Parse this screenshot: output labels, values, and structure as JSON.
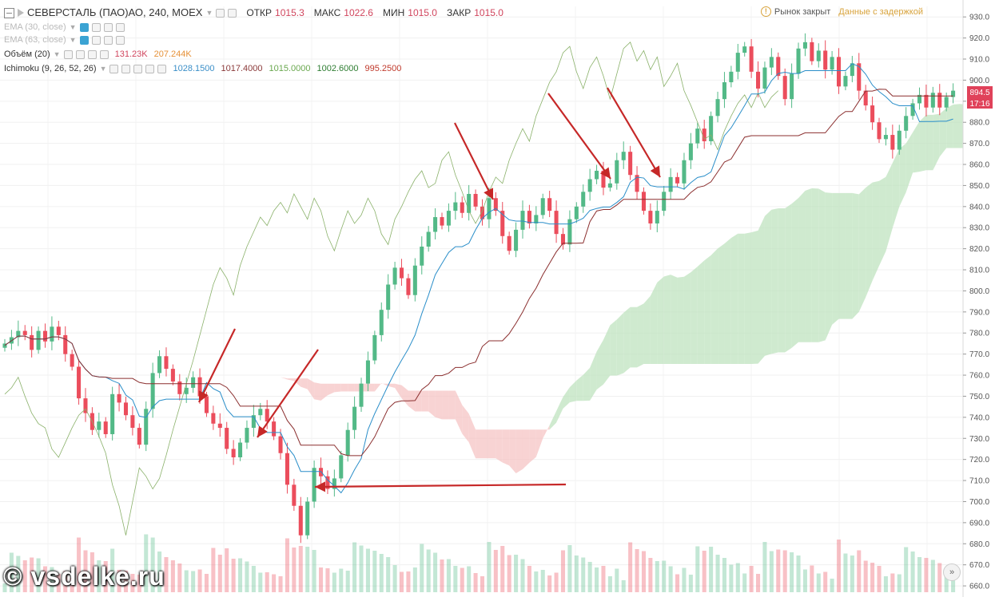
{
  "header": {
    "symbol": "СЕВЕРСТАЛЬ (ПАО)АО, 240, MOEX",
    "ohlc": [
      {
        "label": "ОТКР",
        "value": "1015.3"
      },
      {
        "label": "МАКС",
        "value": "1022.6"
      },
      {
        "label": "МИН",
        "value": "1015.0"
      },
      {
        "label": "ЗАКР",
        "value": "1015.0"
      }
    ],
    "market_status": "Рынок закрыт",
    "data_status": "Данные с задержкой"
  },
  "indicators": {
    "ema30": {
      "label": "EMA (30, close)"
    },
    "ema63": {
      "label": "EMA (63, close)"
    },
    "volume": {
      "label": "Объём (20)",
      "v1": "131.23K",
      "v2": "207.244K"
    },
    "ichimoku": {
      "label": "Ichimoku (9, 26, 52, 26)",
      "values": [
        {
          "v": "1028.1500",
          "color": "#3b8fc8"
        },
        {
          "v": "1017.4000",
          "color": "#8b3a3a"
        },
        {
          "v": "1015.0000",
          "color": "#6aa84f"
        },
        {
          "v": "1002.6000",
          "color": "#2e7d32"
        },
        {
          "v": "995.2500",
          "color": "#c0392b"
        }
      ]
    }
  },
  "price_badges": {
    "price": "894.5",
    "time": "17:16"
  },
  "watermark": "© vsdelke.ru",
  "colors": {
    "up": "#53b987",
    "down": "#eb4d5c",
    "tenkan": "#2a8ec9",
    "kijun": "#8b2f2f",
    "chikou": "#8ab16a",
    "cloud_up": "#bfe3bf",
    "cloud_down": "#f6c4c4",
    "arrow": "#c62828"
  },
  "chart_data": {
    "type": "candlestick",
    "y_ticks": [
      660,
      670,
      680,
      690,
      700,
      710,
      720,
      730,
      740,
      750,
      760,
      770,
      780,
      790,
      800,
      810,
      820,
      830,
      840,
      850,
      860,
      870,
      880,
      890,
      900,
      910,
      920,
      930
    ],
    "ylim": [
      657,
      935
    ],
    "closes": [
      775,
      778,
      781,
      779,
      772,
      781,
      776,
      783,
      779,
      770,
      764,
      749,
      742,
      734,
      738,
      732,
      751,
      747,
      741,
      735,
      727,
      744,
      761,
      769,
      763,
      757,
      751,
      754,
      759,
      750,
      742,
      737,
      735,
      725,
      721,
      728,
      735,
      741,
      744,
      738,
      731,
      723,
      708,
      698,
      684,
      700,
      716,
      712,
      706,
      711,
      722,
      734,
      745,
      756,
      767,
      779,
      791,
      803,
      811,
      806,
      798,
      812,
      821,
      828,
      835,
      831,
      838,
      842,
      837,
      846,
      840,
      834,
      844,
      838,
      826,
      819,
      829,
      838,
      832,
      836,
      844,
      838,
      827,
      822,
      834,
      840,
      847,
      853,
      857,
      849,
      851,
      862,
      866,
      855,
      847,
      838,
      832,
      838,
      847,
      854,
      851,
      862,
      870,
      877,
      871,
      883,
      891,
      899,
      904,
      913,
      916,
      904,
      896,
      906,
      911,
      902,
      891,
      903,
      915,
      918,
      909,
      914,
      905,
      911,
      897,
      902,
      908,
      895,
      888,
      880,
      872,
      874,
      867,
      876,
      883,
      889,
      893,
      887,
      894,
      887,
      892,
      895
    ]
  }
}
